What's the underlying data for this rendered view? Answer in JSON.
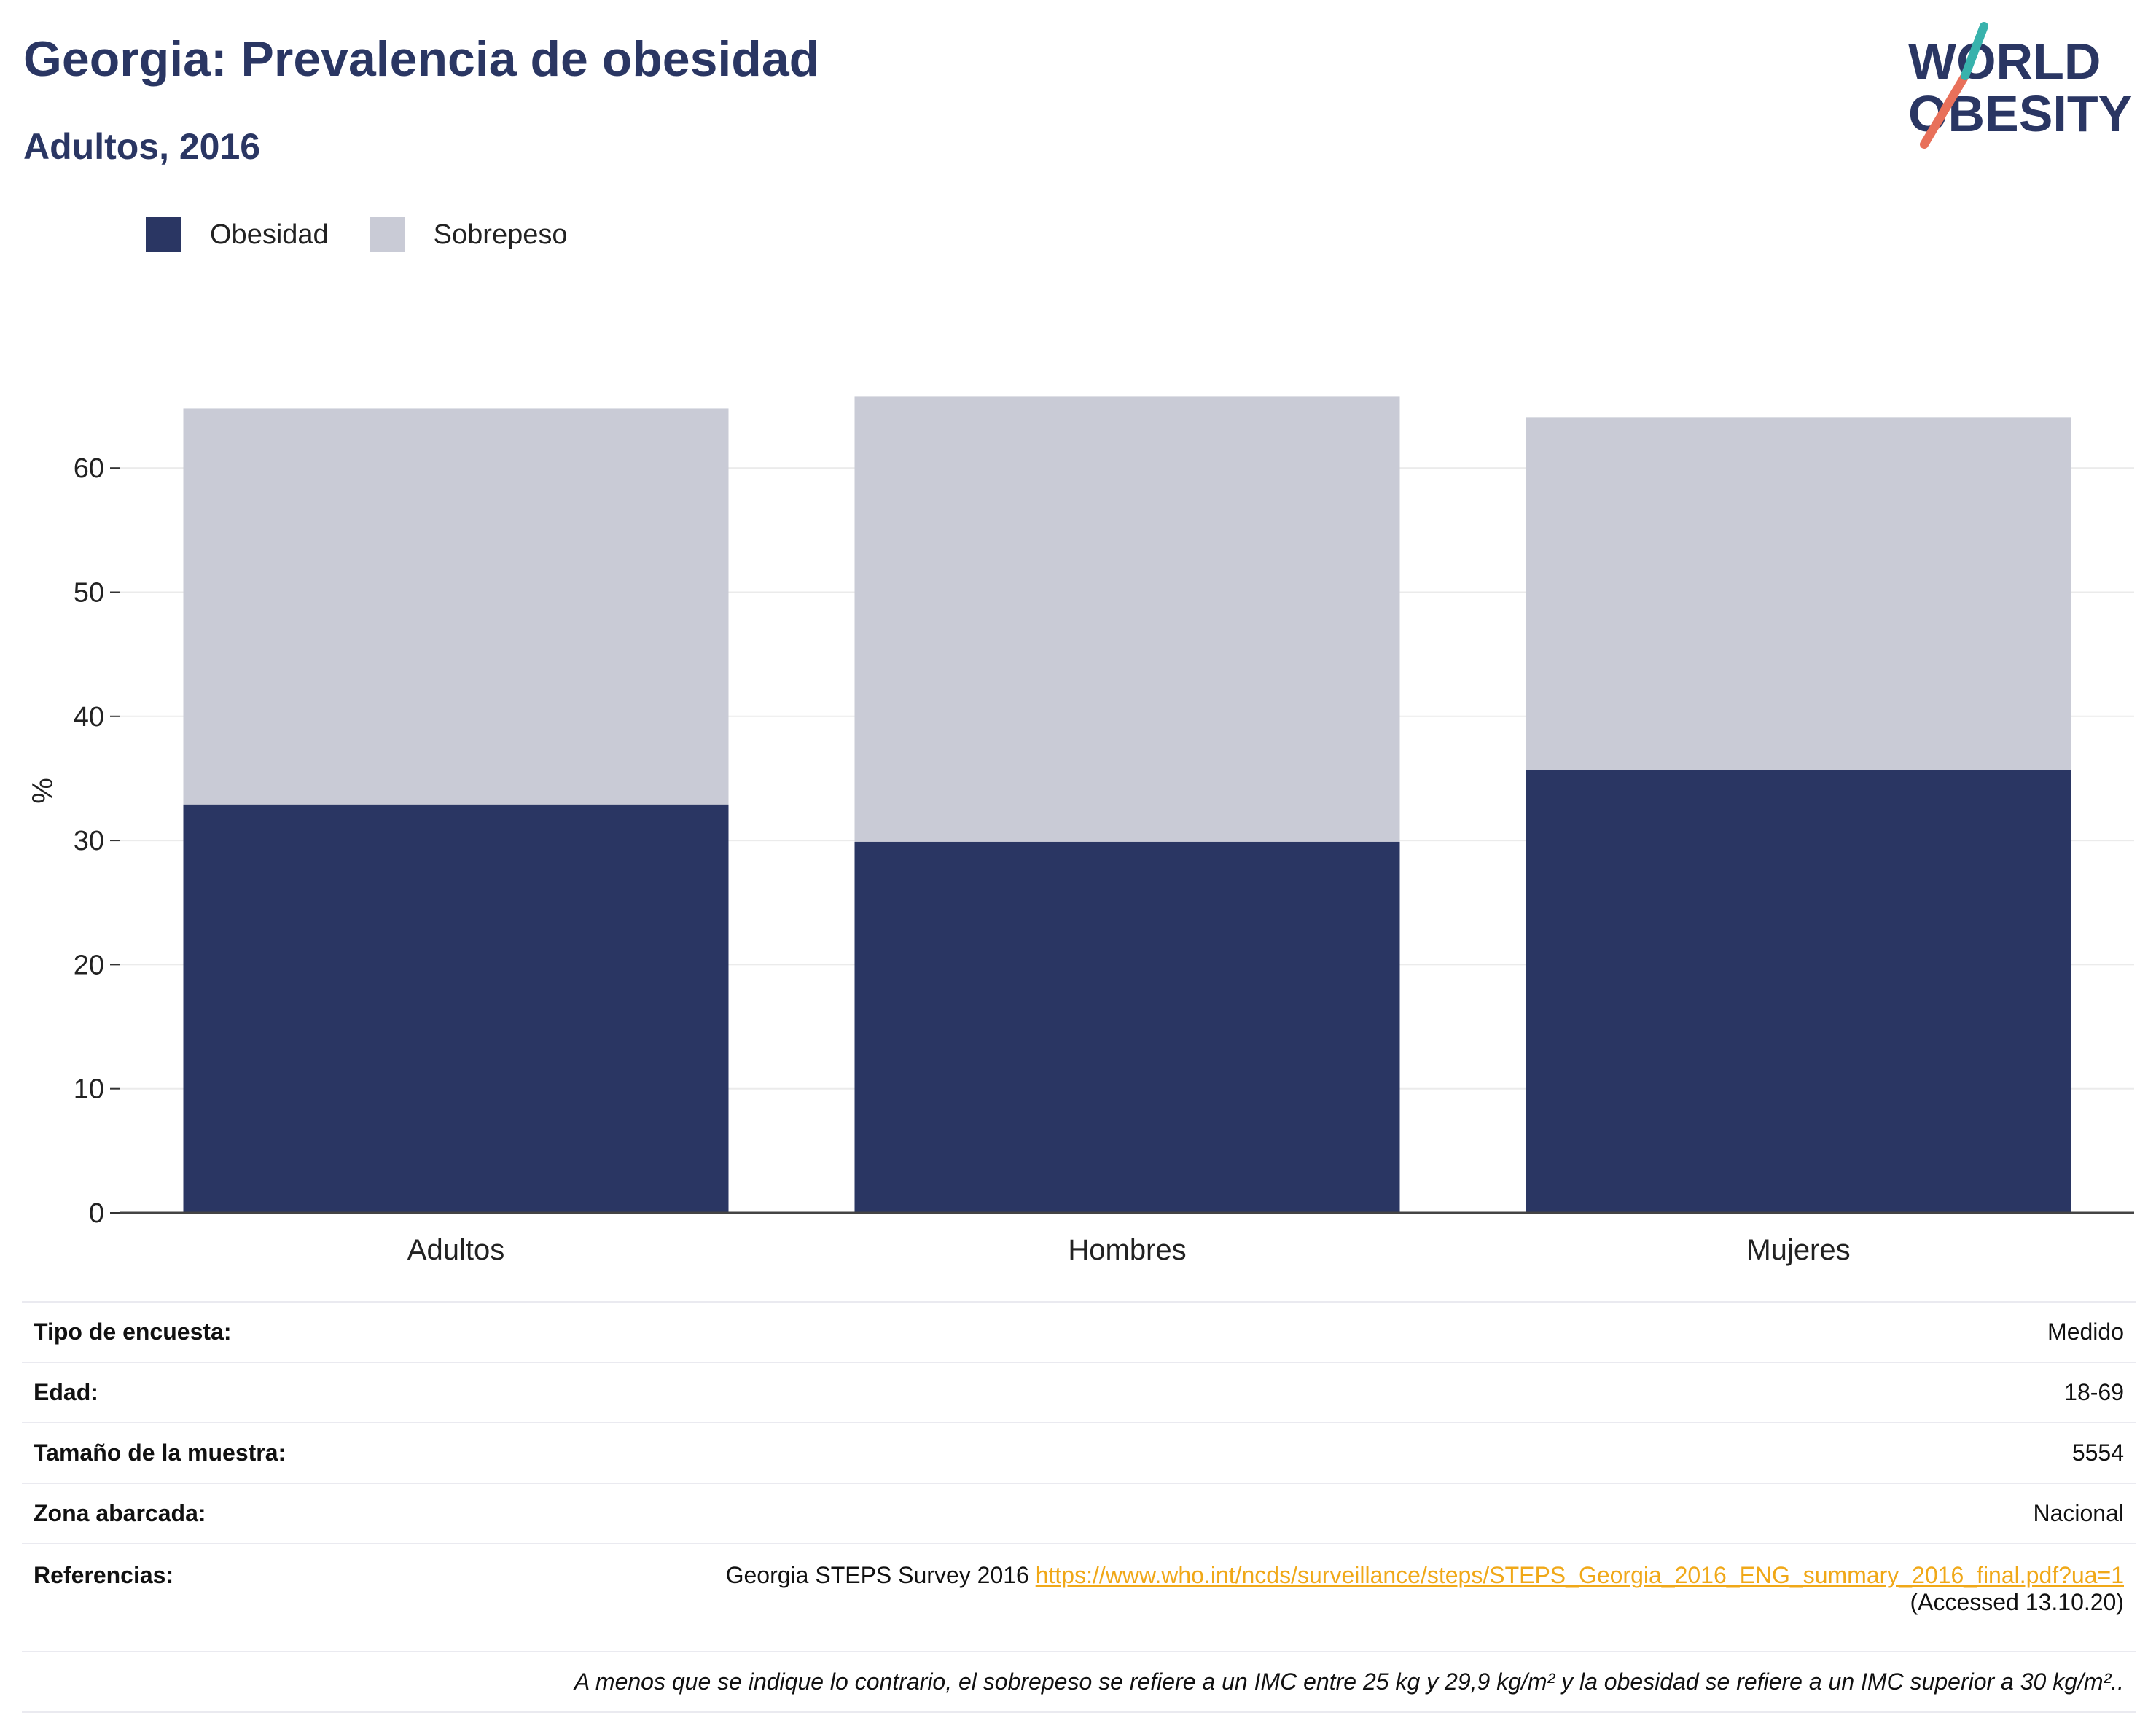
{
  "header": {
    "title": "Georgia: Prevalencia de obesidad",
    "subtitle": "Adultos, 2016"
  },
  "logo": {
    "line1": "WORLD",
    "line2": "OBESITY"
  },
  "legend": [
    {
      "label": "Obesidad",
      "color": "#2a3663"
    },
    {
      "label": "Sobrepeso",
      "color": "#c9cbd6"
    }
  ],
  "chart_data": {
    "type": "bar",
    "stacked": true,
    "categories": [
      "Adultos",
      "Hombres",
      "Mujeres"
    ],
    "series": [
      {
        "name": "Obesidad",
        "color": "#2a3663",
        "values": [
          32.9,
          29.9,
          35.7
        ]
      },
      {
        "name": "Sobrepeso",
        "color": "#c9cbd6",
        "values": [
          31.9,
          35.9,
          28.4
        ]
      }
    ],
    "ylabel": "%",
    "ylim": [
      0,
      66
    ],
    "yticks": [
      0,
      10,
      20,
      30,
      40,
      50,
      60
    ],
    "grid": true,
    "legend_position": "top-left"
  },
  "info": {
    "rows": [
      {
        "label": "Tipo de encuesta:",
        "value": "Medido"
      },
      {
        "label": "Edad:",
        "value": "18-69"
      },
      {
        "label": "Tamaño de la muestra:",
        "value": "5554"
      },
      {
        "label": "Zona abarcada:",
        "value": "Nacional"
      }
    ],
    "references": {
      "label": "Referencias:",
      "text": "Georgia STEPS Survey 2016",
      "link": "https://www.who.int/ncds/surveillance/steps/STEPS_Georgia_2016_ENG_summary_2016_final.pdf?ua=1",
      "accessed": "(Accessed 13.10.20)"
    },
    "note": "A menos que se indique lo contrario, el sobrepeso se refiere a un IMC entre 25 kg y 29,9 kg/m² y la obesidad se refiere a un IMC superior a 30 kg/m².."
  }
}
